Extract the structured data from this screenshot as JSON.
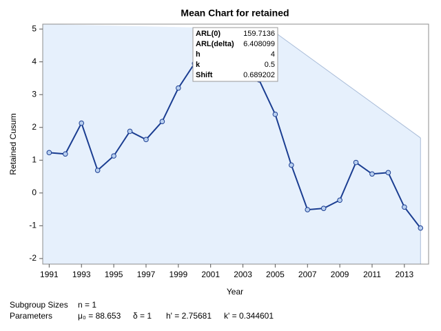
{
  "chart_data": {
    "type": "line",
    "title": "Mean Chart for retained",
    "x_label": "Year",
    "y_label": "Retained Cusum",
    "x": [
      1991,
      1992,
      1993,
      1994,
      1995,
      1996,
      1997,
      1998,
      1999,
      2000,
      2001,
      2002,
      2003,
      2004,
      2005,
      2006,
      2007,
      2008,
      2009,
      2010,
      2011,
      2012,
      2013,
      2014
    ],
    "series": [
      {
        "name": "Retained Cusum",
        "color": "#1a3d91",
        "values": [
          1.23,
          1.19,
          2.13,
          0.69,
          1.13,
          1.88,
          1.63,
          2.18,
          3.2,
          3.95,
          4.3,
          4.5,
          4.2,
          3.45,
          2.4,
          0.85,
          -0.51,
          -0.47,
          -0.22,
          0.93,
          0.58,
          0.62,
          -0.43,
          -1.07
        ]
      }
    ],
    "vmask": {
      "x": [
        2004.7,
        2014
      ],
      "upper": [
        5.0,
        1.68
      ],
      "color": "#e6f0fc",
      "edge_color": "#a9bcd8"
    },
    "xlim": [
      1990.6,
      2014.5
    ],
    "ylim": [
      -2.17,
      5.15
    ],
    "xticks": [
      1991,
      1993,
      1995,
      1997,
      1999,
      2001,
      2003,
      2005,
      2007,
      2009,
      2011,
      2013
    ],
    "yticks": [
      -2,
      -1,
      0,
      1,
      2,
      3,
      4,
      5
    ],
    "inset": {
      "rows": [
        [
          "ARL(0)",
          "159.7136"
        ],
        [
          "ARL(delta)",
          "6.408099"
        ],
        [
          "h",
          "4"
        ],
        [
          "k",
          "0.5"
        ],
        [
          "Shift",
          "0.689202"
        ]
      ]
    },
    "footer": [
      [
        "Subgroup Sizes",
        "n = 1"
      ],
      [
        "Parameters",
        "μ₀ = 88.653",
        "δ = 1",
        "h' = 2.75681",
        "k' = 0.344601"
      ]
    ]
  }
}
